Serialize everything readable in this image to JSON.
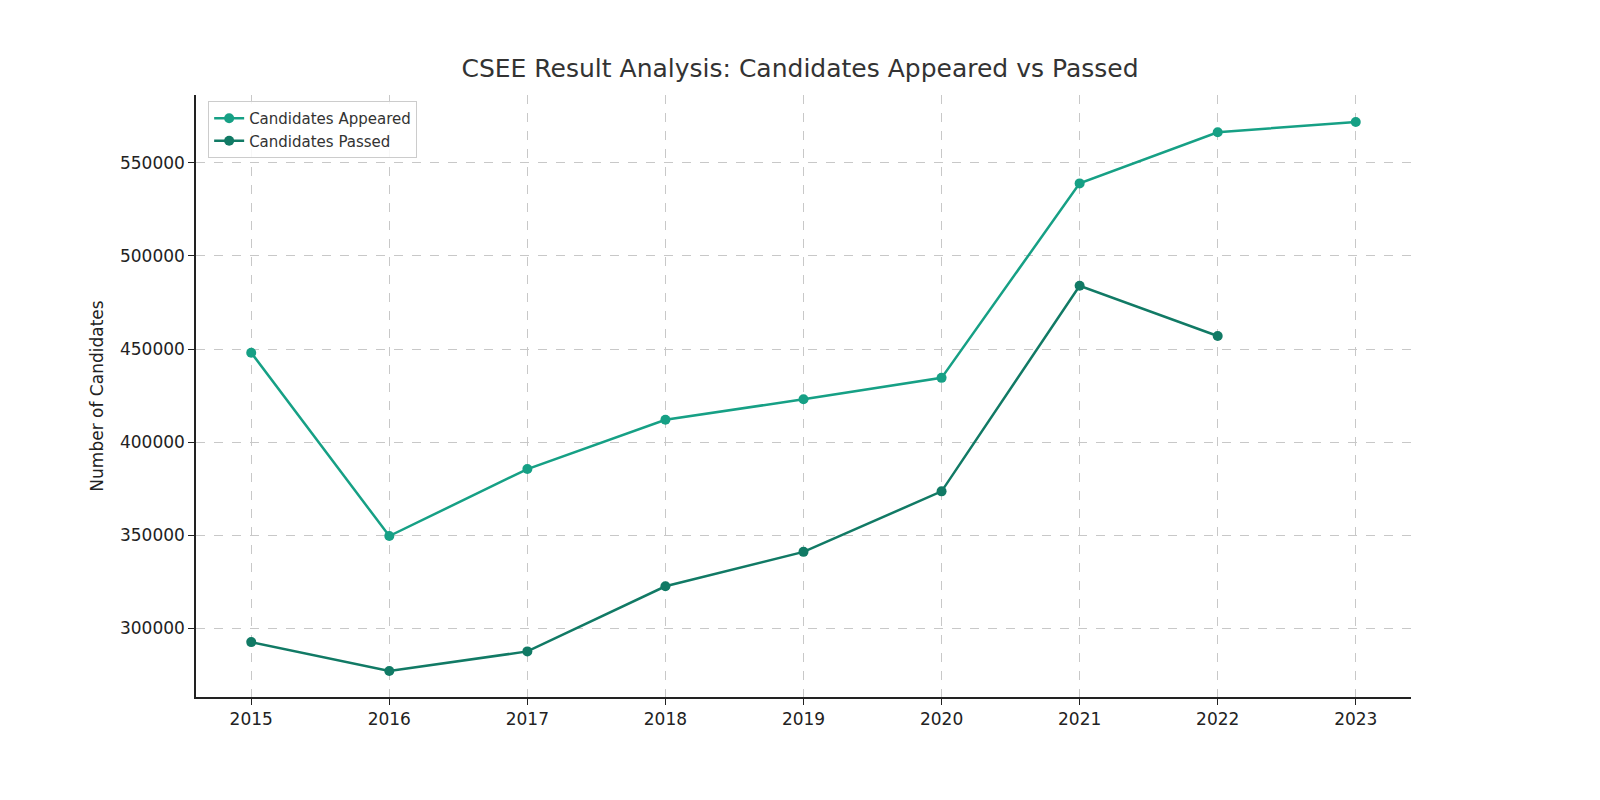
{
  "chart_data": {
    "type": "line",
    "title": "CSEE Result Analysis: Candidates Appeared vs Passed",
    "y_label": "Number of Candidates",
    "x": [
      2015,
      2016,
      2017,
      2018,
      2019,
      2020,
      2021,
      2022,
      2023
    ],
    "series": [
      {
        "name": "Candidates Appeared",
        "color": "#16a085",
        "marker": "circle",
        "values": [
          448000,
          349500,
          385500,
          412000,
          423000,
          434500,
          539000,
          566500,
          572000
        ]
      },
      {
        "name": "Candidates Passed",
        "color": "#117a65",
        "marker": "circle",
        "values": [
          292500,
          277000,
          287500,
          322500,
          341000,
          373500,
          484000,
          457000,
          null
        ]
      }
    ],
    "xlim": [
      2014.6,
      2023.4
    ],
    "xticks": [
      2015,
      2016,
      2017,
      2018,
      2019,
      2020,
      2021,
      2022,
      2023
    ],
    "ylim": [
      263000,
      586500
    ],
    "yticks": [
      300000,
      350000,
      400000,
      450000,
      500000,
      550000
    ],
    "grid": true,
    "legend": "upper left"
  }
}
